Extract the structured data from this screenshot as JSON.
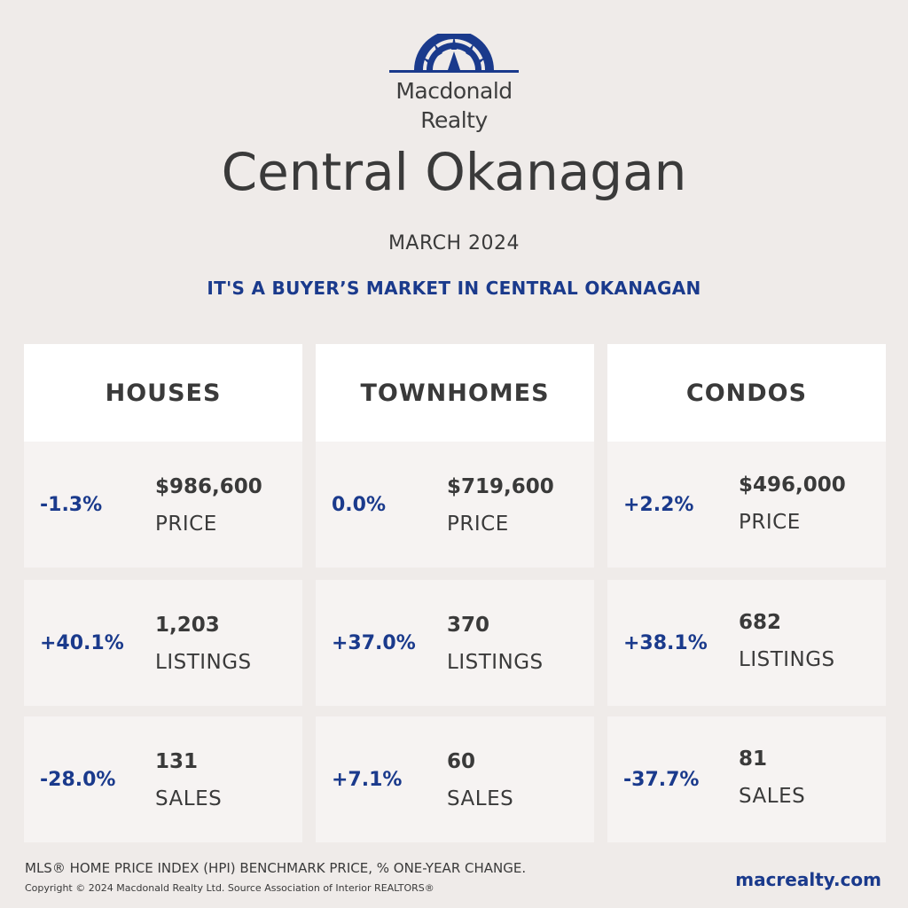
{
  "brand": {
    "name_line1": "Macdonald",
    "name_line2": "Realty",
    "logo_icon": "sunburst-arch-icon",
    "color": "#1a3a8c"
  },
  "region": "Central Okanagan",
  "date": "MARCH 2024",
  "headline": "IT'S A BUYER’S MARKET IN CENTRAL OKANAGAN",
  "columns": [
    {
      "title": "HOUSES",
      "price": {
        "pct": "-1.3%",
        "value": "$986,600",
        "label": "PRICE"
      },
      "listings": {
        "pct": "+40.1%",
        "value": "1,203",
        "label": "LISTINGS"
      },
      "sales": {
        "pct": "-28.0%",
        "value": "131",
        "label": "SALES"
      }
    },
    {
      "title": "TOWNHOMES",
      "price": {
        "pct": "0.0%",
        "value": "$719,600",
        "label": "PRICE"
      },
      "listings": {
        "pct": "+37.0%",
        "value": "370",
        "label": "LISTINGS"
      },
      "sales": {
        "pct": "+7.1%",
        "value": "60",
        "label": "SALES"
      }
    },
    {
      "title": "CONDOS",
      "price": {
        "pct": "+2.2%",
        "value": "$496,000",
        "label": "PRICE"
      },
      "listings": {
        "pct": "+38.1%",
        "value": "682",
        "label": "LISTINGS"
      },
      "sales": {
        "pct": "-37.7%",
        "value": "81",
        "label": "SALES"
      }
    }
  ],
  "footer": {
    "note": "MLS® HOME PRICE INDEX (HPI) BENCHMARK PRICE, % ONE-YEAR CHANGE.",
    "copyright": "Copyright © 2024 Macdonald Realty Ltd. Source Association of Interior REALTORS®",
    "website": "macrealty.com"
  },
  "colors": {
    "background": "#efebe9",
    "accent": "#1a3a8c",
    "text": "#3a3a3a",
    "card": "#f6f3f2"
  }
}
